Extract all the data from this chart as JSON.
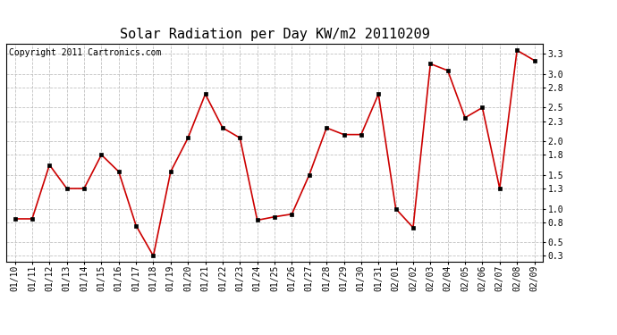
{
  "title": "Solar Radiation per Day KW/m2 20110209",
  "copyright_text": "Copyright 2011 Cartronics.com",
  "dates": [
    "01/10",
    "01/11",
    "01/12",
    "01/13",
    "01/14",
    "01/15",
    "01/16",
    "01/17",
    "01/18",
    "01/19",
    "01/20",
    "01/21",
    "01/22",
    "01/23",
    "01/24",
    "01/25",
    "01/26",
    "01/27",
    "01/28",
    "01/29",
    "01/30",
    "01/31",
    "02/01",
    "02/02",
    "02/03",
    "02/04",
    "02/05",
    "02/06",
    "02/07",
    "02/08",
    "02/09"
  ],
  "values": [
    0.85,
    0.85,
    1.65,
    1.3,
    1.3,
    1.8,
    1.55,
    0.75,
    0.3,
    1.55,
    2.05,
    2.7,
    2.2,
    2.05,
    0.83,
    0.88,
    0.92,
    1.5,
    2.2,
    2.1,
    2.1,
    2.7,
    1.0,
    0.72,
    3.15,
    3.05,
    2.35,
    2.5,
    1.3,
    3.35,
    3.2
  ],
  "yticks": [
    0.3,
    0.5,
    0.8,
    1.0,
    1.3,
    1.5,
    1.8,
    2.0,
    2.3,
    2.5,
    2.8,
    3.0,
    3.3
  ],
  "ylim": [
    0.22,
    3.45
  ],
  "line_color": "#cc0000",
  "marker_color": "#000000",
  "bg_color": "#ffffff",
  "grid_color": "#bbbbbb",
  "title_fontsize": 11,
  "tick_fontsize": 7,
  "copyright_fontsize": 7
}
